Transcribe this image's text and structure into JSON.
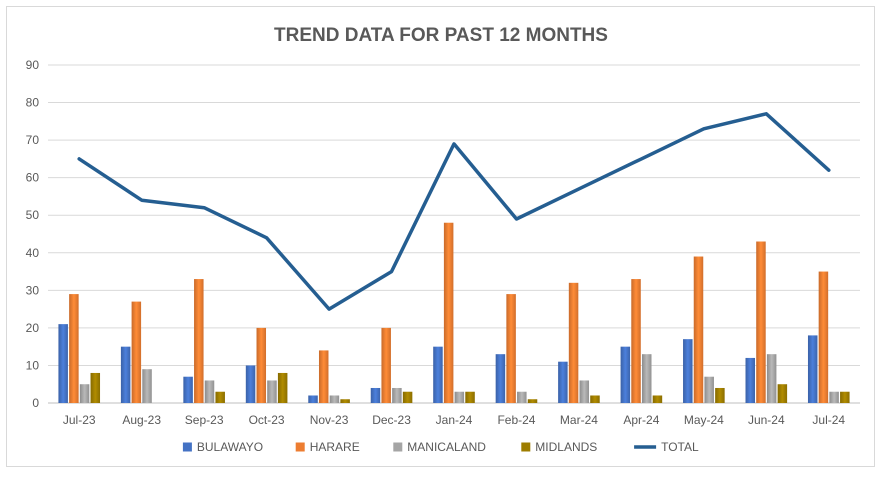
{
  "chart_data": {
    "type": "bar",
    "title": "TREND DATA FOR PAST 12 MONTHS",
    "categories": [
      "Jul-23",
      "Aug-23",
      "Sep-23",
      "Oct-23",
      "Nov-23",
      "Dec-23",
      "Jan-24",
      "Feb-24",
      "Mar-24",
      "Apr-24",
      "May-24",
      "Jun-24",
      "Jul-24"
    ],
    "ylim": [
      0,
      90
    ],
    "yticks": [
      0,
      10,
      20,
      30,
      40,
      50,
      60,
      70,
      80,
      90
    ],
    "grid": true,
    "legend_position": "bottom",
    "series": [
      {
        "name": "BULAWAYO",
        "type": "bar",
        "color": "#4472c4",
        "values": [
          21,
          15,
          7,
          10,
          2,
          4,
          15,
          13,
          11,
          15,
          17,
          12,
          18
        ]
      },
      {
        "name": "HARARE",
        "type": "bar",
        "color": "#ed7d31",
        "values": [
          29,
          27,
          33,
          20,
          14,
          20,
          48,
          29,
          32,
          33,
          39,
          43,
          35
        ]
      },
      {
        "name": "MANICALAND",
        "type": "bar",
        "color": "#a5a5a5",
        "values": [
          5,
          9,
          6,
          6,
          2,
          4,
          3,
          3,
          6,
          13,
          7,
          13,
          3
        ]
      },
      {
        "name": "MIDLANDS",
        "type": "bar",
        "color": "#9e7d00",
        "values": [
          8,
          0,
          3,
          8,
          1,
          3,
          3,
          1,
          2,
          2,
          4,
          5,
          3
        ]
      },
      {
        "name": "TOTAL",
        "type": "line",
        "color": "#255e91",
        "values": [
          65,
          54,
          52,
          44,
          25,
          35,
          69,
          49,
          57,
          65,
          73,
          77,
          62
        ]
      }
    ]
  }
}
